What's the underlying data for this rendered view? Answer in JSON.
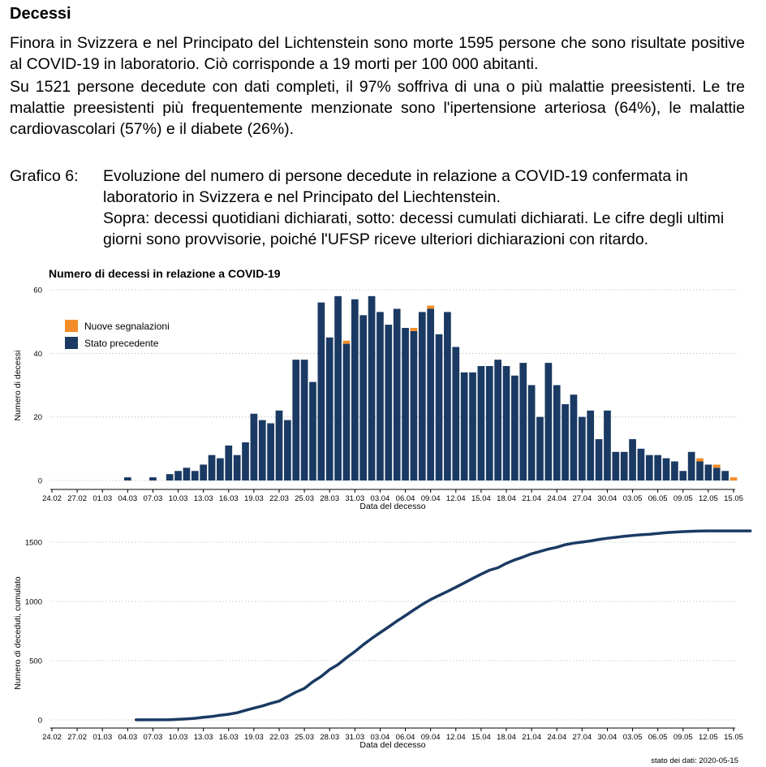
{
  "section": {
    "title": "Decessi",
    "para1": "Finora in Svizzera e nel Principato del Lichtenstein sono morte 1595 persone che sono risultate positive al COVID-19 in laboratorio. Ciò corrisponde a 19 morti per 100 000 abitanti.",
    "para2": "Su 1521 persone decedute con dati completi, il 97% soffriva di una o più malattie preesistenti. Le tre malattie preesistenti più frequentemente menzionate sono l'ipertensione arteriosa (64%), le malattie cardiovascolari (57%) e il diabete (26%)."
  },
  "caption": {
    "label": "Grafico 6:",
    "line1": "Evoluzione del numero di persone decedute in relazione a COVID-19 confermata in laboratorio in Svizzera e nel Principato del Liechtenstein.",
    "line2": "Sopra: decessi quotidiani dichiarati, sotto: decessi cumulati dichiarati. Le cifre degli ultimi giorni sono provvisorie, poiché l'UFSP riceve ulteriori dichiarazioni con ritardo."
  },
  "footer": {
    "data_status": "stato dei dati: 2020-05-15"
  },
  "colors": {
    "stato_precedente": "#1a3a63",
    "nuove_segnalazioni": "#f28c28",
    "cumulative_line": "#1a3a63"
  },
  "chart_data": [
    {
      "type": "bar",
      "stacked": true,
      "title": "Numero di decessi in relazione a COVID-19",
      "xlabel": "Data del decesso",
      "ylabel": "Numero di decessi",
      "ylim": [
        0,
        60
      ],
      "yticks": [
        0,
        20,
        40,
        60
      ],
      "x_start": "24.02",
      "x_tick_labels": [
        "24.02",
        "27.02",
        "01.03",
        "04.03",
        "07.03",
        "10.03",
        "13.03",
        "16.03",
        "19.03",
        "22.03",
        "25.03",
        "28.03",
        "31.03",
        "03.04",
        "06.04",
        "09.04",
        "12.04",
        "15.04",
        "18.04",
        "21.04",
        "24.04",
        "27.04",
        "30.04",
        "03.05",
        "06.05",
        "09.05",
        "12.05",
        "15.05"
      ],
      "legend": {
        "placement": "top-left",
        "entries": [
          "Nuove segnalazioni",
          "Stato precedente"
        ]
      },
      "series": [
        {
          "name": "Stato precedente",
          "color_key": "stato_precedente",
          "values": [
            0,
            0,
            0,
            0,
            0,
            0,
            0,
            0,
            0,
            1,
            0,
            0,
            1,
            0,
            2,
            3,
            4,
            3,
            5,
            8,
            7,
            11,
            8,
            12,
            21,
            19,
            18,
            22,
            19,
            38,
            38,
            31,
            56,
            45,
            58,
            43,
            57,
            52,
            58,
            53,
            49,
            54,
            48,
            47,
            53,
            54,
            46,
            53,
            42,
            34,
            34,
            36,
            36,
            38,
            36,
            33,
            37,
            30,
            20,
            37,
            30,
            24,
            27,
            20,
            22,
            13,
            22,
            9,
            9,
            13,
            10,
            8,
            8,
            7,
            6,
            3,
            9,
            6,
            5,
            4,
            3,
            0,
            0
          ]
        },
        {
          "name": "Nuove segnalazioni",
          "color_key": "nuove_segnalazioni",
          "values": [
            0,
            0,
            0,
            0,
            0,
            0,
            0,
            0,
            0,
            0,
            0,
            0,
            0,
            0,
            0,
            0,
            0,
            0,
            0,
            0,
            0,
            0,
            0,
            0,
            0,
            0,
            0,
            0,
            0,
            0,
            0,
            0,
            0,
            0,
            0,
            1,
            0,
            0,
            0,
            0,
            0,
            0,
            0,
            1,
            0,
            1,
            0,
            0,
            0,
            0,
            0,
            0,
            0,
            0,
            0,
            0,
            0,
            0,
            0,
            0,
            0,
            0,
            0,
            0,
            0,
            0,
            0,
            0,
            0,
            0,
            0,
            0,
            0,
            0,
            0,
            0,
            0,
            1,
            0,
            1,
            0,
            1,
            0
          ]
        }
      ]
    },
    {
      "type": "line",
      "xlabel": "Data del decesso",
      "ylabel": "Numero di deceduti, cumulato",
      "ylim": [
        0,
        1650
      ],
      "yticks": [
        0,
        500,
        1000,
        1500
      ],
      "x_start": "24.02",
      "x_tick_labels": [
        "24.02",
        "27.02",
        "01.03",
        "04.03",
        "07.03",
        "10.03",
        "13.03",
        "16.03",
        "19.03",
        "22.03",
        "25.03",
        "28.03",
        "31.03",
        "03.04",
        "06.04",
        "09.04",
        "12.04",
        "15.04",
        "18.04",
        "21.04",
        "24.04",
        "27.04",
        "30.04",
        "03.05",
        "06.05",
        "09.05",
        "12.05",
        "15.05"
      ],
      "series": [
        {
          "name": "Decessi cumulati",
          "color_key": "cumulative_line",
          "x_day_index": [
            10,
            14,
            15,
            16,
            17,
            18,
            19,
            20,
            21,
            22,
            23,
            24,
            25,
            26,
            27,
            28,
            29,
            30,
            31,
            32,
            33,
            34,
            35,
            36,
            37,
            38,
            39,
            40,
            41,
            42,
            43,
            44,
            45,
            46,
            47,
            48,
            49,
            50,
            51,
            52,
            53,
            54,
            55,
            56,
            57,
            58,
            59,
            60,
            61,
            62,
            63,
            64,
            65,
            66,
            67,
            68,
            69,
            70,
            71,
            72,
            73,
            74,
            75,
            76,
            77,
            78,
            79,
            80,
            81,
            82,
            83
          ],
          "values": [
            1,
            2,
            5,
            9,
            14,
            22,
            29,
            40,
            48,
            60,
            81,
            100,
            118,
            140,
            159,
            197,
            235,
            266,
            322,
            367,
            425,
            468,
            525,
            577,
            635,
            688,
            736,
            784,
            834,
            880,
            928,
            974,
            1016,
            1050,
            1084,
            1120,
            1156,
            1194,
            1230,
            1264,
            1284,
            1321,
            1351,
            1375,
            1402,
            1422,
            1442,
            1457,
            1479,
            1492,
            1501,
            1510,
            1523,
            1533,
            1541,
            1549,
            1556,
            1562,
            1567,
            1574,
            1580,
            1585,
            1589,
            1592,
            1594,
            1595,
            1595,
            1595,
            1595,
            1595,
            1595
          ]
        }
      ]
    }
  ]
}
